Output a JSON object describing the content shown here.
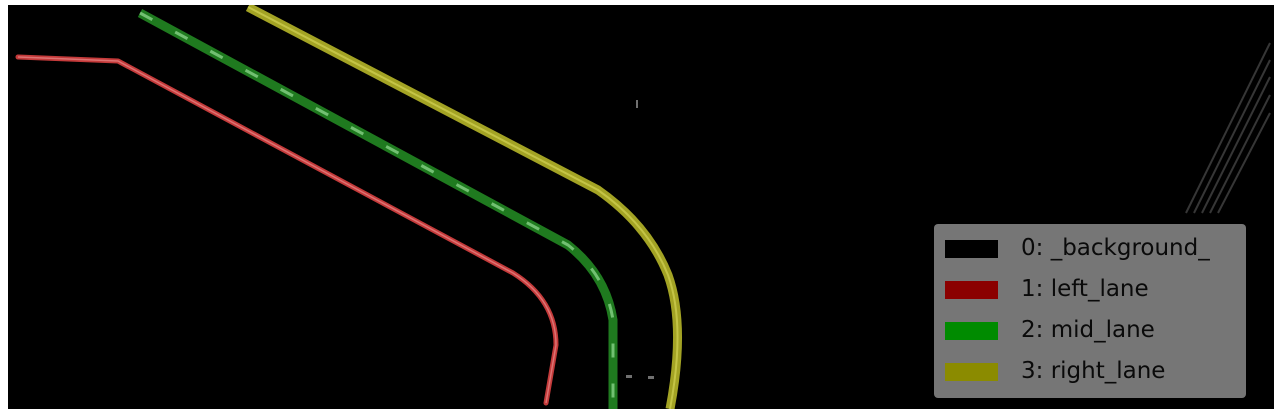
{
  "image": {
    "description_type": "lane segmentation overlay",
    "colors": {
      "background": "#000000",
      "left_lane": "#c43a3a",
      "mid_lane": "#1f8a1f",
      "right_lane": "#a3a324",
      "legend_bg": "#808080"
    }
  },
  "legend": {
    "entries": [
      {
        "label": "0: _background_",
        "color": "#000000"
      },
      {
        "label": "1: left_lane",
        "color": "#8b0000"
      },
      {
        "label": "2: mid_lane",
        "color": "#008b00"
      },
      {
        "label": "3: right_lane",
        "color": "#8b8b00"
      }
    ]
  }
}
